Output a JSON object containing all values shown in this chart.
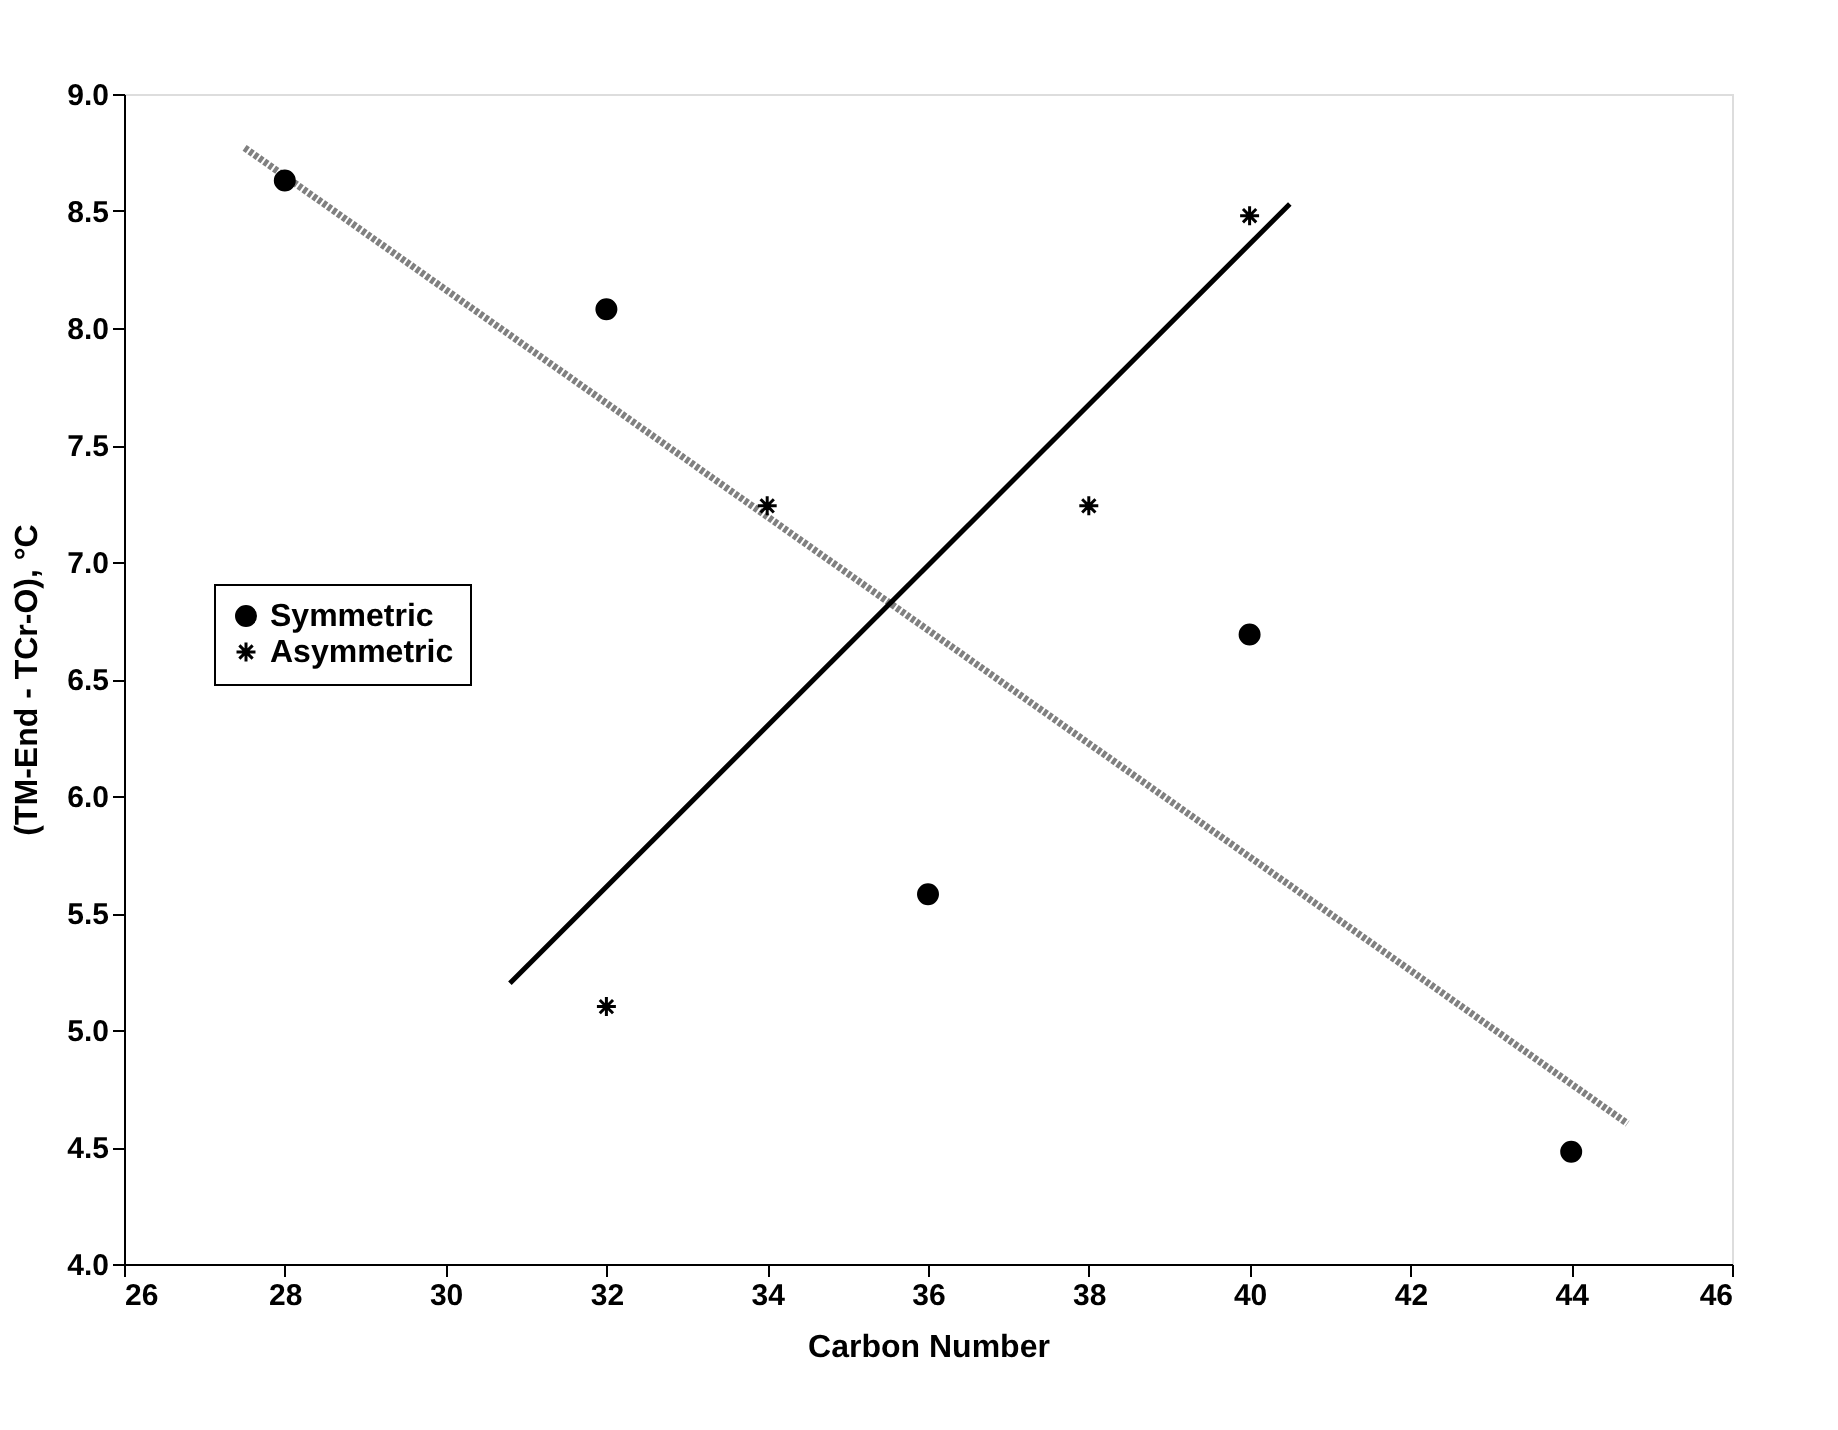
{
  "chart_data": {
    "type": "scatter",
    "xlabel": "Carbon Number",
    "ylabel": "(TM-End - TCr-O), °C",
    "xlim": [
      26,
      46
    ],
    "xticks": [
      26,
      28,
      30,
      32,
      34,
      36,
      38,
      40,
      42,
      44,
      46
    ],
    "ylim": [
      4.0,
      9.0
    ],
    "yticks": [
      {
        "value": 4.0,
        "label": "4.0"
      },
      {
        "value": 4.5,
        "label": "4.5"
      },
      {
        "value": 5.0,
        "label": "5.0"
      },
      {
        "value": 5.5,
        "label": "5.5"
      },
      {
        "value": 6.0,
        "label": "6.0"
      },
      {
        "value": 6.5,
        "label": "6.5"
      },
      {
        "value": 7.0,
        "label": "7.0"
      },
      {
        "value": 7.5,
        "label": "7.5"
      },
      {
        "value": 8.0,
        "label": "8.0"
      },
      {
        "value": 8.5,
        "label": "8.5"
      },
      {
        "value": 9.0,
        "label": "9.0"
      }
    ],
    "grid": false,
    "legend": "left",
    "series": [
      {
        "name": "Symmetric",
        "marker": "circle",
        "color": "#000000",
        "x": [
          28,
          32,
          36,
          40,
          44
        ],
        "values": [
          8.63,
          8.08,
          5.58,
          6.69,
          4.48
        ]
      },
      {
        "name": "Asymmetric",
        "marker": "cross",
        "color": "#000000",
        "x": [
          32,
          34,
          38,
          40
        ],
        "values": [
          5.1,
          7.24,
          7.24,
          8.48
        ]
      },
      {
        "type": "line",
        "line_style": "dotted",
        "color": "#808080",
        "x": [
          27.5,
          44.7
        ],
        "values": [
          8.77,
          4.6
        ]
      },
      {
        "type": "line",
        "line_style": "solid",
        "color": "#000000",
        "x": [
          30.8,
          40.5
        ],
        "values": [
          5.2,
          8.53
        ]
      }
    ]
  }
}
